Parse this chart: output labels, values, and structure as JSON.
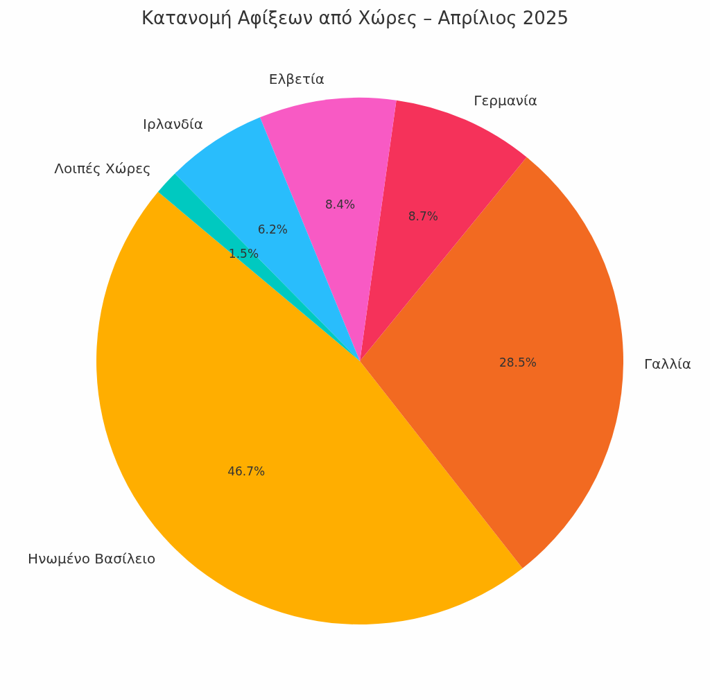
{
  "chart_data": {
    "type": "pie",
    "title": "Κατανομή Αφίξεων από Χώρες – Απρίλιος 2025",
    "categories": [
      "Ηνωμένο Βασίλειο",
      "Γαλλία",
      "Γερμανία",
      "Ελβετία",
      "Ιρλανδία",
      "Λοιπές Χώρες"
    ],
    "values": [
      46.7,
      28.5,
      8.7,
      8.4,
      6.2,
      1.5
    ],
    "value_labels": [
      "46.7%",
      "28.5%",
      "8.7%",
      "8.4%",
      "6.2%",
      "1.5%"
    ],
    "colors": [
      "#ffae00",
      "#f26a21",
      "#f5325a",
      "#f85ac4",
      "#29bdfc",
      "#00c9c0"
    ],
    "legend": false
  }
}
